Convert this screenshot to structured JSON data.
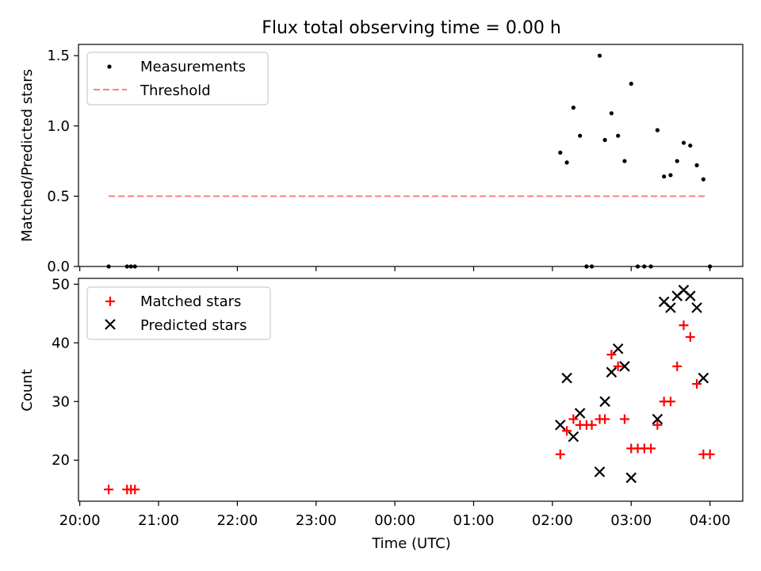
{
  "title": "Flux total observing time = 0.00 h",
  "chart_data": [
    {
      "type": "scatter",
      "panel": "top",
      "ylabel": "Matched/Predicted stars",
      "ylim": [
        0,
        1.58
      ],
      "yticks": [
        0.0,
        0.5,
        1.0,
        1.5
      ],
      "ytick_labels": [
        "0.0",
        "0.5",
        "1.0",
        "1.5"
      ],
      "legend": {
        "placement": "upper-left",
        "entries": [
          "Measurements",
          "Threshold"
        ]
      },
      "series": [
        {
          "name": "Measurements",
          "marker": "dot",
          "color": "#000000",
          "points": [
            {
              "x": "20:22",
              "y": 0.0
            },
            {
              "x": "20:36",
              "y": 0.0
            },
            {
              "x": "20:39",
              "y": 0.0
            },
            {
              "x": "20:42",
              "y": 0.0
            },
            {
              "x": "02:06",
              "y": 0.81
            },
            {
              "x": "02:11",
              "y": 0.74
            },
            {
              "x": "02:16",
              "y": 1.13
            },
            {
              "x": "02:21",
              "y": 0.93
            },
            {
              "x": "02:26",
              "y": 0.0
            },
            {
              "x": "02:30",
              "y": 0.0
            },
            {
              "x": "02:36",
              "y": 1.5
            },
            {
              "x": "02:40",
              "y": 0.9
            },
            {
              "x": "02:45",
              "y": 1.09
            },
            {
              "x": "02:50",
              "y": 0.93
            },
            {
              "x": "02:55",
              "y": 0.75
            },
            {
              "x": "03:00",
              "y": 1.3
            },
            {
              "x": "03:05",
              "y": 0.0
            },
            {
              "x": "03:10",
              "y": 0.0
            },
            {
              "x": "03:15",
              "y": 0.0
            },
            {
              "x": "03:20",
              "y": 0.97
            },
            {
              "x": "03:25",
              "y": 0.64
            },
            {
              "x": "03:30",
              "y": 0.65
            },
            {
              "x": "03:35",
              "y": 0.75
            },
            {
              "x": "03:40",
              "y": 0.88
            },
            {
              "x": "03:45",
              "y": 0.86
            },
            {
              "x": "03:50",
              "y": 0.72
            },
            {
              "x": "03:55",
              "y": 0.62
            },
            {
              "x": "04:00",
              "y": 0.0
            }
          ]
        },
        {
          "name": "Threshold",
          "line": "dashed",
          "color": "#ff7f7f",
          "points": [
            {
              "x": "20:22",
              "y": 0.5
            },
            {
              "x": "03:58",
              "y": 0.5
            }
          ]
        }
      ]
    },
    {
      "type": "scatter",
      "panel": "bottom",
      "xlabel": "Time (UTC)",
      "ylabel": "Count",
      "ylim": [
        13,
        51
      ],
      "yticks": [
        20,
        30,
        40,
        50
      ],
      "ytick_labels": [
        "20",
        "30",
        "40",
        "50"
      ],
      "xticks": [
        "20:00",
        "21:00",
        "22:00",
        "23:00",
        "00:00",
        "01:00",
        "02:00",
        "03:00",
        "04:00"
      ],
      "xlim": [
        "19:59",
        "04:25"
      ],
      "legend": {
        "placement": "upper-left",
        "entries": [
          "Matched stars",
          "Predicted stars"
        ]
      },
      "series": [
        {
          "name": "Matched stars",
          "marker": "plus",
          "color": "#ff0000",
          "points": [
            {
              "x": "20:22",
              "y": 15
            },
            {
              "x": "20:36",
              "y": 15
            },
            {
              "x": "20:39",
              "y": 15
            },
            {
              "x": "20:42",
              "y": 15
            },
            {
              "x": "02:06",
              "y": 21
            },
            {
              "x": "02:11",
              "y": 25
            },
            {
              "x": "02:16",
              "y": 27
            },
            {
              "x": "02:21",
              "y": 26
            },
            {
              "x": "02:26",
              "y": 26
            },
            {
              "x": "02:30",
              "y": 26
            },
            {
              "x": "02:36",
              "y": 27
            },
            {
              "x": "02:40",
              "y": 27
            },
            {
              "x": "02:45",
              "y": 38
            },
            {
              "x": "02:50",
              "y": 36
            },
            {
              "x": "02:55",
              "y": 27
            },
            {
              "x": "03:00",
              "y": 22
            },
            {
              "x": "03:05",
              "y": 22
            },
            {
              "x": "03:10",
              "y": 22
            },
            {
              "x": "03:15",
              "y": 22
            },
            {
              "x": "03:20",
              "y": 26
            },
            {
              "x": "03:25",
              "y": 30
            },
            {
              "x": "03:30",
              "y": 30
            },
            {
              "x": "03:35",
              "y": 36
            },
            {
              "x": "03:40",
              "y": 43
            },
            {
              "x": "03:45",
              "y": 41
            },
            {
              "x": "03:50",
              "y": 33
            },
            {
              "x": "03:55",
              "y": 21
            },
            {
              "x": "04:00",
              "y": 21
            }
          ]
        },
        {
          "name": "Predicted stars",
          "marker": "x",
          "color": "#000000",
          "points": [
            {
              "x": "02:06",
              "y": 26
            },
            {
              "x": "02:11",
              "y": 34
            },
            {
              "x": "02:16",
              "y": 24
            },
            {
              "x": "02:21",
              "y": 28
            },
            {
              "x": "02:36",
              "y": 18
            },
            {
              "x": "02:40",
              "y": 30
            },
            {
              "x": "02:45",
              "y": 35
            },
            {
              "x": "02:50",
              "y": 39
            },
            {
              "x": "02:55",
              "y": 36
            },
            {
              "x": "03:00",
              "y": 17
            },
            {
              "x": "03:20",
              "y": 27
            },
            {
              "x": "03:25",
              "y": 47
            },
            {
              "x": "03:30",
              "y": 46
            },
            {
              "x": "03:35",
              "y": 48
            },
            {
              "x": "03:40",
              "y": 49
            },
            {
              "x": "03:45",
              "y": 48
            },
            {
              "x": "03:50",
              "y": 46
            },
            {
              "x": "03:55",
              "y": 34
            }
          ]
        }
      ]
    }
  ]
}
